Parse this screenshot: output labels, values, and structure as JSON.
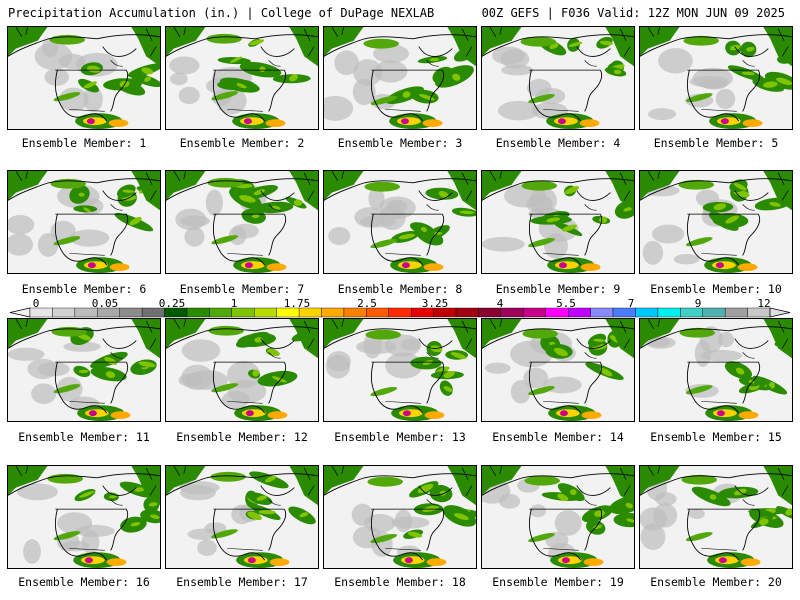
{
  "header": {
    "left_title": "Precipitation Accumulation (in.) | College of DuPage NEXLAB",
    "right_title": "00Z GEFS | F036 Valid: 12Z MON JUN 09 2025"
  },
  "colorbar": {
    "tick_labels": [
      "0",
      "0.05",
      "0.25",
      "1",
      "1.75",
      "2.5",
      "3.25",
      "4",
      "5.5",
      "7",
      "9",
      "12"
    ],
    "colors": [
      "#e6e6e6",
      "#d2d2d2",
      "#bcbcbc",
      "#a8a8a8",
      "#8c8c8c",
      "#707070",
      "#005a00",
      "#2a8a00",
      "#52a80a",
      "#80c400",
      "#b8dc00",
      "#ffff00",
      "#ffd200",
      "#ffaa00",
      "#ff8000",
      "#ff5a00",
      "#ff2a00",
      "#e60000",
      "#c00000",
      "#a00010",
      "#8a0030",
      "#a0005a",
      "#c8008c",
      "#ff00ff",
      "#c000ff",
      "#8a8aff",
      "#4a7cff",
      "#00c8ff",
      "#00f0f0",
      "#40d0c8",
      "#50b0b0",
      "#a0a0a0",
      "#c8c8c8"
    ]
  },
  "members": [
    {
      "label": "Ensemble Member: 1"
    },
    {
      "label": "Ensemble Member: 2"
    },
    {
      "label": "Ensemble Member: 3"
    },
    {
      "label": "Ensemble Member: 4"
    },
    {
      "label": "Ensemble Member: 5"
    },
    {
      "label": "Ensemble Member: 6"
    },
    {
      "label": "Ensemble Member: 7"
    },
    {
      "label": "Ensemble Member: 8"
    },
    {
      "label": "Ensemble Member: 9"
    },
    {
      "label": "Ensemble Member: 10"
    },
    {
      "label": "Ensemble Member: 11"
    },
    {
      "label": "Ensemble Member: 12"
    },
    {
      "label": "Ensemble Member: 13"
    },
    {
      "label": "Ensemble Member: 14"
    },
    {
      "label": "Ensemble Member: 15"
    },
    {
      "label": "Ensemble Member: 16"
    },
    {
      "label": "Ensemble Member: 17"
    },
    {
      "label": "Ensemble Member: 18"
    },
    {
      "label": "Ensemble Member: 19"
    },
    {
      "label": "Ensemble Member: 20"
    }
  ]
}
